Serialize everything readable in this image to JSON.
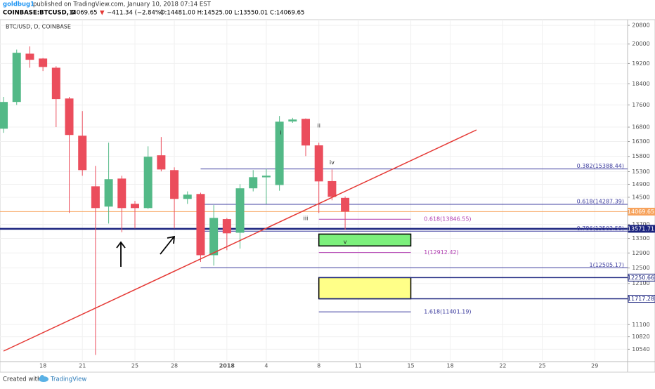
{
  "header": {
    "author": "goldbug1",
    "published": "published on TradingView.com, January 10, 2018 07:14 EST",
    "symbol": "COINBASE:BTCUSD, D",
    "last": "14069.65",
    "arrow": "▼",
    "change": "−411.34 (−2.84%)",
    "ohlc": "O:14481.00 H:14525.00 L:13550.01 C:14069.65"
  },
  "footer": {
    "created": "Created with",
    "brand": "TradingView"
  },
  "chart_data": {
    "type": "candlestick",
    "title": "BTC/USD, D, COINBASE",
    "log": true,
    "up_color": "#53b987",
    "down_color": "#eb4d5c",
    "grid": true,
    "xlim": [
      -0.27,
      47.5
    ],
    "xticks": [
      {
        "value": 3,
        "label": "18"
      },
      {
        "value": 6,
        "label": "21"
      },
      {
        "value": 10,
        "label": "25"
      },
      {
        "value": 13,
        "label": "28"
      },
      {
        "value": 17,
        "label": "2018"
      },
      {
        "value": 20,
        "label": "4"
      },
      {
        "value": 24,
        "label": "8"
      },
      {
        "value": 27,
        "label": "11"
      },
      {
        "value": 31,
        "label": "15"
      },
      {
        "value": 34,
        "label": "18"
      },
      {
        "value": 38,
        "label": "22"
      },
      {
        "value": 41,
        "label": "25"
      },
      {
        "value": 45,
        "label": "29"
      }
    ],
    "ylim": [
      10270,
      21050
    ],
    "yticks": [
      20800,
      20000,
      19200,
      18400,
      17600,
      16800,
      16300,
      15800,
      15300,
      14900,
      14500,
      13700,
      13300,
      12900,
      12500,
      12100,
      11100,
      10820,
      10540
    ],
    "open": [
      16744,
      17711,
      19600,
      19400,
      19030,
      17840,
      16500,
      14837,
      14219,
      15080,
      14302,
      14175,
      15835,
      15350,
      14450,
      14600,
      12840,
      13850,
      13460,
      14775,
      15120,
      14878,
      17000,
      17095,
      16170,
      15000,
      14481
    ],
    "high": [
      17900,
      19770,
      19900,
      19420,
      19090,
      17900,
      17375,
      15486,
      16262,
      15170,
      14390,
      16137,
      16454,
      15440,
      14680,
      14640,
      14263,
      13886,
      14905,
      15350,
      15390,
      17197,
      17130,
      17110,
      16260,
      15370,
      14525
    ],
    "low": [
      16600,
      17600,
      19030,
      18900,
      16800,
      14030,
      15170,
      10415,
      13722,
      13476,
      13582,
      14150,
      15310,
      13582,
      14300,
      12660,
      12563,
      12975,
      13020,
      14680,
      14300,
      14700,
      16950,
      15808,
      14030,
      14408,
      13550.01
    ],
    "close": [
      17711,
      19637,
      19350,
      19060,
      17818,
      16525,
      15350,
      14175,
      15060,
      14175,
      14175,
      15788,
      15371,
      14450,
      14581,
      12840,
      13886,
      13443,
      14775,
      15124,
      15173,
      16993,
      17070,
      16164,
      14991,
      14514,
      14069.65
    ],
    "price_lines": [
      {
        "value": 14069.65,
        "color": "#f7a35c"
      },
      {
        "value": 13571.71,
        "color": "#1a237e"
      },
      {
        "value": 12250.66,
        "color": "#1a237e"
      },
      {
        "value": 11717.28,
        "color": "#1a237e"
      }
    ],
    "fib_groups": [
      {
        "levels": [
          {
            "value": 15388.44,
            "label": "0.382(15388.44)",
            "color": "#4040a0"
          },
          {
            "value": 14287.39,
            "label": "0.618(14287.39)",
            "color": "#4040a0"
          },
          {
            "value": 13503.58,
            "label": "0.786(13503.58)",
            "color": "#4040a0"
          },
          {
            "value": 12505.17,
            "label": "1(12505.17)",
            "color": "#4040a0"
          }
        ]
      },
      {
        "levels": [
          {
            "value": 13846.55,
            "label": "0.618(13846.55)",
            "color": "#b03cb0"
          },
          {
            "value": 12912.42,
            "label": "1(12912.42)",
            "color": "#b03cb0"
          },
          {
            "value": 11401.19,
            "label": "1.618(11401.19)",
            "color": "#4040a0"
          }
        ]
      }
    ],
    "zones": [
      {
        "range": [
          13092,
          13422
        ],
        "color": "#7cf07c"
      },
      {
        "range": [
          11717.28,
          12250.66
        ],
        "color": "#ffff88"
      }
    ],
    "annotations": [
      {
        "text": "i",
        "at": [
          21,
          16600
        ]
      },
      {
        "text": "ii",
        "at": [
          24,
          16850
        ]
      },
      {
        "text": "iii",
        "at": [
          23,
          13870
        ]
      },
      {
        "text": "iv",
        "at": [
          25,
          15600
        ]
      },
      {
        "text": "v",
        "at": [
          26,
          13200
        ]
      }
    ]
  }
}
